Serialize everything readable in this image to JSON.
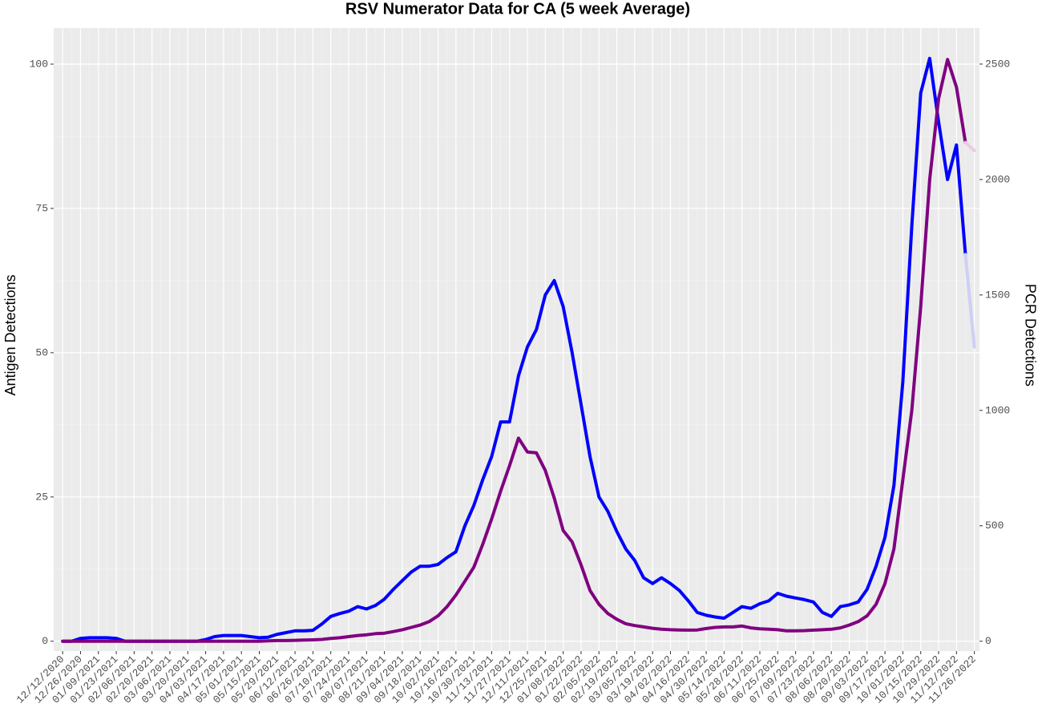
{
  "chart_data": {
    "type": "line",
    "title": "RSV Numerator Data for CA (5 week Average)",
    "y_label": "Antigen Detections",
    "y2_label": "PCR Detections",
    "x": [
      "12/12/2020",
      "12/19/2020",
      "12/26/2020",
      "01/02/2021",
      "01/09/2021",
      "01/16/2021",
      "01/23/2021",
      "01/30/2021",
      "02/06/2021",
      "02/13/2021",
      "02/20/2021",
      "02/27/2021",
      "03/06/2021",
      "03/13/2021",
      "03/20/2021",
      "03/27/2021",
      "04/03/2021",
      "04/10/2021",
      "04/17/2021",
      "04/24/2021",
      "05/01/2021",
      "05/08/2021",
      "05/15/2021",
      "05/22/2021",
      "05/29/2021",
      "06/05/2021",
      "06/12/2021",
      "06/19/2021",
      "06/26/2021",
      "07/03/2021",
      "07/10/2021",
      "07/17/2021",
      "07/24/2021",
      "07/31/2021",
      "08/07/2021",
      "08/14/2021",
      "08/21/2021",
      "08/28/2021",
      "09/04/2021",
      "09/11/2021",
      "09/18/2021",
      "09/25/2021",
      "10/02/2021",
      "10/09/2021",
      "10/16/2021",
      "10/23/2021",
      "10/30/2021",
      "11/06/2021",
      "11/13/2021",
      "11/20/2021",
      "11/27/2021",
      "12/04/2021",
      "12/11/2021",
      "12/18/2021",
      "12/25/2021",
      "01/01/2022",
      "01/08/2022",
      "01/15/2022",
      "01/22/2022",
      "01/29/2022",
      "02/05/2022",
      "02/12/2022",
      "02/19/2022",
      "02/26/2022",
      "03/05/2022",
      "03/12/2022",
      "03/19/2022",
      "03/26/2022",
      "04/02/2022",
      "04/09/2022",
      "04/16/2022",
      "04/23/2022",
      "04/30/2022",
      "05/07/2022",
      "05/14/2022",
      "05/21/2022",
      "05/28/2022",
      "06/04/2022",
      "06/11/2022",
      "06/18/2022",
      "06/25/2022",
      "07/02/2022",
      "07/09/2022",
      "07/16/2022",
      "07/23/2022",
      "07/30/2022",
      "08/06/2022",
      "08/13/2022",
      "08/20/2022",
      "08/27/2022",
      "09/03/2022",
      "09/10/2022",
      "09/17/2022",
      "09/24/2022",
      "10/01/2022",
      "10/08/2022",
      "10/15/2022",
      "10/22/2022",
      "10/29/2022",
      "11/05/2022",
      "11/12/2022",
      "11/19/2022",
      "11/26/2022"
    ],
    "xlim": [
      "12/05/2020",
      "11/30/2022"
    ],
    "xticks": [
      "12/12/2020",
      "12/26/2020",
      "01/09/2021",
      "01/23/2021",
      "02/06/2021",
      "02/20/2021",
      "03/06/2021",
      "03/20/2021",
      "04/03/2021",
      "04/17/2021",
      "05/01/2021",
      "05/15/2021",
      "05/29/2021",
      "06/12/2021",
      "06/26/2021",
      "07/10/2021",
      "07/24/2021",
      "08/07/2021",
      "08/21/2021",
      "09/04/2021",
      "09/18/2021",
      "10/02/2021",
      "10/16/2021",
      "10/30/2021",
      "11/13/2021",
      "11/27/2021",
      "12/11/2021",
      "12/25/2021",
      "01/08/2022",
      "01/22/2022",
      "02/05/2022",
      "02/19/2022",
      "03/05/2022",
      "03/19/2022",
      "04/02/2022",
      "04/16/2022",
      "04/30/2022",
      "05/14/2022",
      "05/28/2022",
      "06/11/2022",
      "06/25/2022",
      "07/09/2022",
      "07/23/2022",
      "08/06/2022",
      "08/20/2022",
      "09/03/2022",
      "09/17/2022",
      "10/01/2022",
      "10/15/2022",
      "10/29/2022",
      "11/12/2022",
      "11/26/2022"
    ],
    "ylim": [
      -1.7,
      106.25
    ],
    "yticks": [
      0,
      25,
      50,
      75,
      100
    ],
    "y2lim": [
      -42.5,
      2656
    ],
    "y2ticks": [
      0,
      500,
      1000,
      1500,
      2000,
      2500
    ],
    "grid": true,
    "series": [
      {
        "color": "#0000ff",
        "values": [
          0,
          0,
          0.5,
          0.6,
          0.6,
          0.6,
          0.5,
          0,
          0,
          0,
          0,
          0,
          0,
          0,
          0,
          0,
          0.3,
          0.8,
          1,
          1,
          1,
          0.8,
          0.6,
          0.7,
          1.2,
          1.5,
          1.8,
          1.8,
          1.9,
          3,
          4.3,
          4.8,
          5.2,
          6,
          5.6,
          6.2,
          7.3,
          9,
          10.5,
          12,
          13,
          13,
          13.3,
          14.5,
          15.5,
          20,
          23.5,
          28,
          32,
          38,
          38,
          46,
          51,
          54,
          60,
          62.5,
          58,
          50,
          41,
          32,
          25,
          22.5,
          19,
          16,
          14,
          11,
          10,
          11,
          10,
          8.8,
          7,
          5,
          4.5,
          4.2,
          4,
          5,
          6,
          5.7,
          6.5,
          7,
          8.3,
          7.8,
          7.5,
          7.2,
          6.8,
          5,
          4.3,
          6,
          6.3,
          6.8,
          9,
          13,
          18,
          27,
          45,
          72,
          95,
          101,
          90,
          80,
          86,
          67,
          null
        ]
      },
      {
        "color": "#800080",
        "axis": "y2",
        "values": [
          0,
          0,
          0,
          0,
          0,
          0,
          0,
          0,
          0,
          0,
          0,
          0,
          0,
          0,
          0,
          0,
          0,
          0,
          0,
          0,
          0,
          0,
          0,
          2,
          3,
          3,
          4,
          5,
          6,
          8,
          12,
          15,
          20,
          25,
          28,
          33,
          35,
          42,
          50,
          60,
          70,
          85,
          110,
          150,
          200,
          260,
          320,
          420,
          530,
          650,
          760,
          880,
          820,
          816,
          740,
          620,
          480,
          430,
          330,
          220,
          160,
          120,
          95,
          76,
          68,
          62,
          56,
          52,
          50,
          49,
          48,
          49,
          55,
          60,
          62,
          62,
          66,
          58,
          54,
          52,
          50,
          45,
          45,
          46,
          48,
          50,
          52,
          58,
          70,
          85,
          110,
          160,
          250,
          400,
          700,
          1000,
          1450,
          2000,
          2350,
          2520,
          2400,
          2160,
          null
        ]
      },
      {
        "color": "#cfcff5",
        "x": [
          "11/19/2022",
          "11/26/2022"
        ],
        "values": [
          67,
          51
        ]
      },
      {
        "color": "#e8cce8",
        "axis": "y2",
        "x": [
          "11/19/2022",
          "11/26/2022"
        ],
        "values": [
          2160,
          2125
        ]
      }
    ]
  }
}
